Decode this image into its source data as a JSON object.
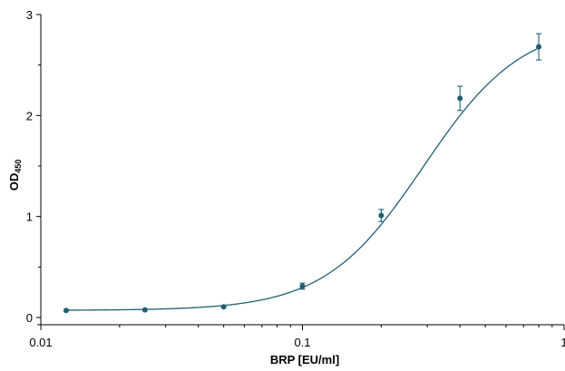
{
  "chart_data": {
    "type": "scatter",
    "xlabel": "BRP [EU/ml]",
    "ylabel": "OD",
    "ylabel_subscript": "450",
    "x_scale": "log",
    "xlim": [
      0.01,
      1
    ],
    "ylim": [
      0,
      3
    ],
    "x_ticks": [
      {
        "value": 0.01,
        "label": "0.01"
      },
      {
        "value": 0.1,
        "label": "0.1"
      },
      {
        "value": 1,
        "label": "1"
      }
    ],
    "y_ticks": [
      {
        "value": 0,
        "label": "0"
      },
      {
        "value": 1,
        "label": "1"
      },
      {
        "value": 2,
        "label": "2"
      },
      {
        "value": 3,
        "label": "3"
      }
    ],
    "grid": false,
    "legend": "none",
    "color": "#1f5f73",
    "points": [
      {
        "x": 0.0125,
        "y": 0.07,
        "err": 0.01
      },
      {
        "x": 0.025,
        "y": 0.075,
        "err": 0.01
      },
      {
        "x": 0.05,
        "y": 0.105,
        "err": 0.012
      },
      {
        "x": 0.1,
        "y": 0.31,
        "err": 0.03
      },
      {
        "x": 0.2,
        "y": 1.01,
        "err": 0.06
      },
      {
        "x": 0.4,
        "y": 2.17,
        "err": 0.12
      },
      {
        "x": 0.8,
        "y": 2.68,
        "err": 0.13
      }
    ],
    "fit": {
      "model": "4PL",
      "bottom": 0.07,
      "top": 2.92,
      "ec50": 0.29,
      "hill": 2.3
    }
  }
}
